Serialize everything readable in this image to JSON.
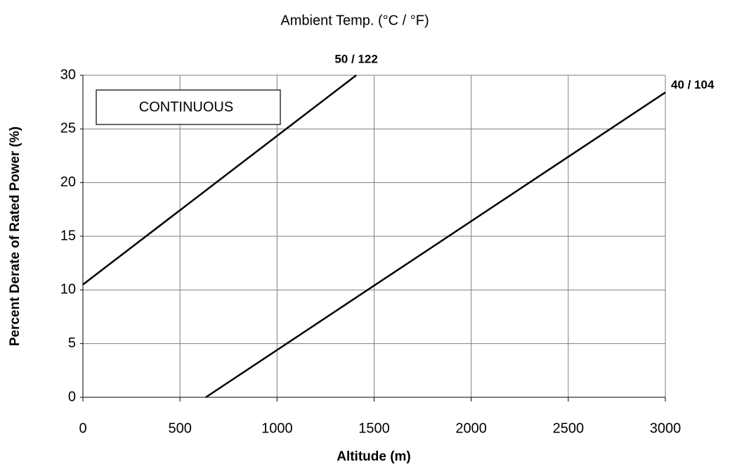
{
  "chart_data": {
    "type": "line",
    "title": "Ambient Temp. (°C / °F)",
    "x_label": "Altitude (m)",
    "y_label": "Percent Derate of Rated Power (%)",
    "annotation": "CONTINUOUS",
    "series": [
      {
        "name": "50 / 122",
        "color": "#000000",
        "x": [
          0,
          1408
        ],
        "values": [
          10.5,
          30
        ]
      },
      {
        "name": "40 / 104",
        "color": "#000000",
        "x": [
          633,
          3000
        ],
        "values": [
          0,
          28.4
        ]
      }
    ],
    "xlim": [
      0,
      3000
    ],
    "xticks": [
      0,
      500,
      1000,
      1500,
      2000,
      2500,
      3000
    ],
    "ylim": [
      0,
      30
    ],
    "yticks": [
      0,
      5,
      10,
      15,
      20,
      25,
      30
    ],
    "grid": true
  }
}
